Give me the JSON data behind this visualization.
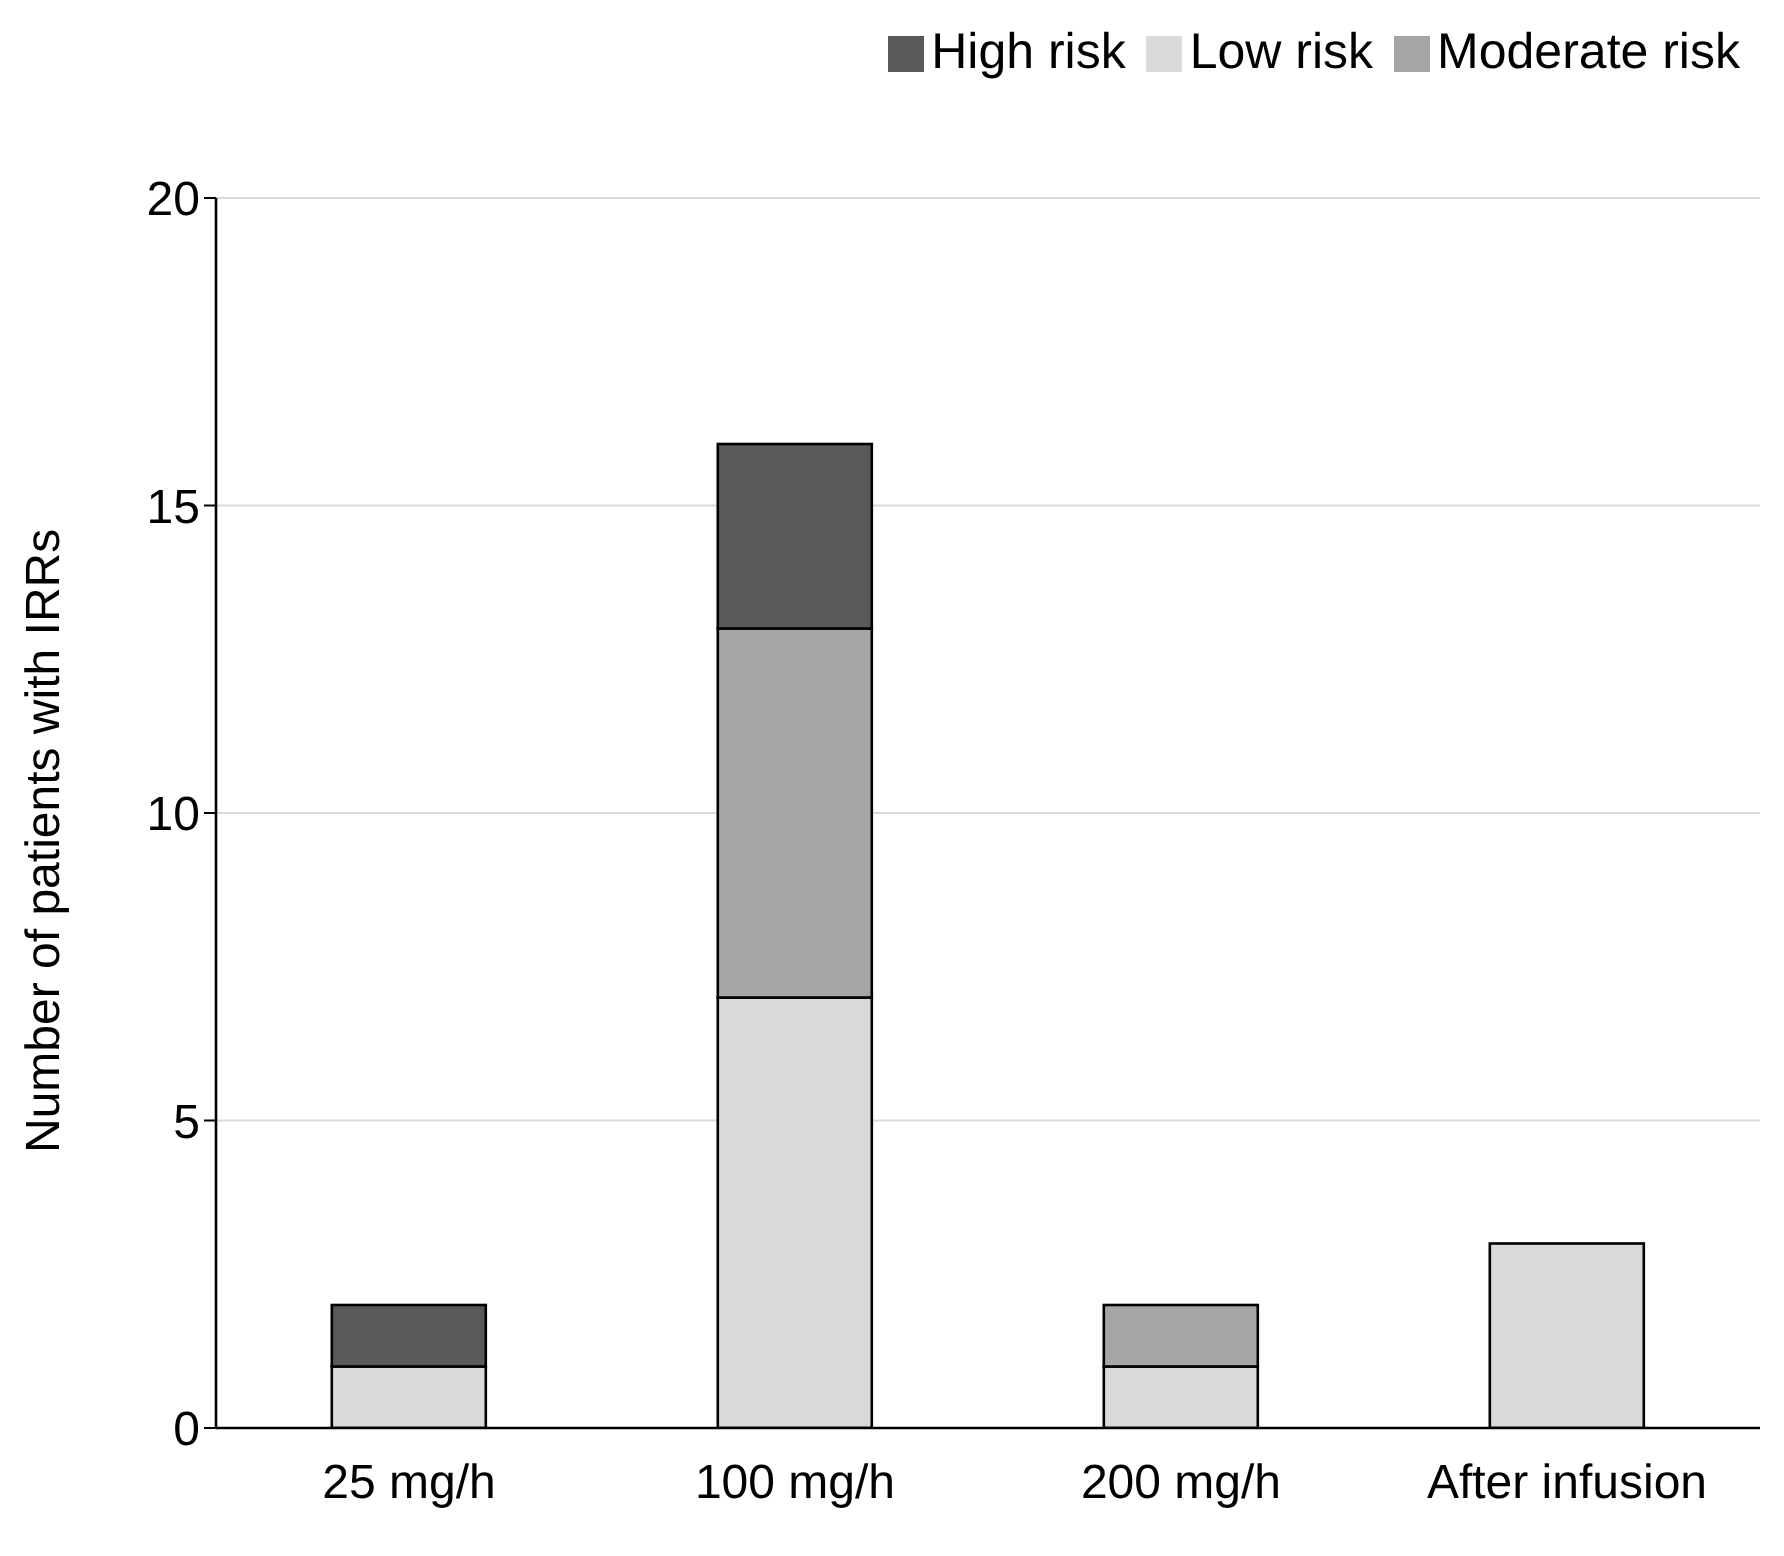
{
  "chart_data": {
    "type": "bar",
    "stacked": true,
    "ylabel": "Number of patients with IRRs",
    "categories": [
      "25 mg/h",
      "100 mg/h",
      "200 mg/h",
      "After infusion"
    ],
    "series": [
      {
        "name": "Low risk",
        "color": "#d9d9d9",
        "values": [
          1,
          7,
          1,
          3
        ]
      },
      {
        "name": "Moderate risk",
        "color": "#a6a6a6",
        "values": [
          0,
          6,
          1,
          0
        ]
      },
      {
        "name": "High risk",
        "color": "#595959",
        "values": [
          1,
          3,
          0,
          0
        ]
      }
    ],
    "ylim": [
      0,
      20
    ],
    "yticks": [
      0,
      5,
      10,
      15,
      20
    ],
    "grid": "y",
    "legend": "top right"
  }
}
